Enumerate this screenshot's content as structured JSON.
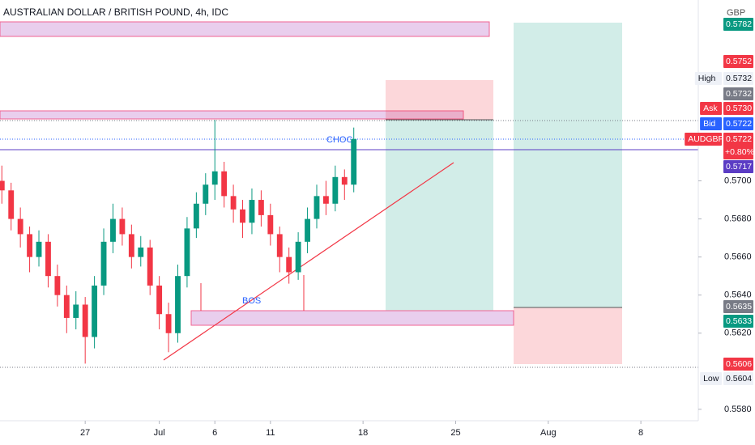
{
  "chart_data": {
    "type": "candlestick",
    "title": "AUSTRALIAN DOLLAR / BRITISH POUND, 4h, IDC",
    "up_color": "#089981",
    "down_color": "#f23645",
    "annotations": [
      "CHOC",
      "BOS"
    ],
    "currency": "GBP",
    "x": [
      -4.5,
      -4,
      -3.5,
      -3,
      -2.5,
      -2,
      -1.5,
      -1,
      -0.5,
      0,
      0.5,
      1,
      1.5,
      2,
      2.5,
      3,
      3.5,
      4,
      4.5,
      5,
      5.5,
      6,
      6.5,
      7,
      7.5,
      8,
      8.5,
      9,
      9.5,
      10,
      10.5,
      11,
      11.5,
      12,
      12.5,
      13,
      13.5,
      14,
      14.5
    ],
    "candles": [
      [
        0.57,
        0.5708,
        0.5688,
        0.5695
      ],
      [
        0.5695,
        0.5699,
        0.5674,
        0.568
      ],
      [
        0.568,
        0.5686,
        0.5665,
        0.5672
      ],
      [
        0.5672,
        0.5676,
        0.5652,
        0.566
      ],
      [
        0.566,
        0.5674,
        0.5655,
        0.5668
      ],
      [
        0.5668,
        0.5672,
        0.5644,
        0.565
      ],
      [
        0.565,
        0.5656,
        0.5634,
        0.564
      ],
      [
        0.564,
        0.5645,
        0.562,
        0.5628
      ],
      [
        0.5628,
        0.5642,
        0.5622,
        0.5635
      ],
      [
        0.5635,
        0.5639,
        0.5604,
        0.5618
      ],
      [
        0.5618,
        0.565,
        0.5612,
        0.5645
      ],
      [
        0.5645,
        0.5675,
        0.564,
        0.5668
      ],
      [
        0.5668,
        0.5688,
        0.5662,
        0.568
      ],
      [
        0.568,
        0.5686,
        0.5666,
        0.5672
      ],
      [
        0.5672,
        0.5677,
        0.5654,
        0.566
      ],
      [
        0.566,
        0.5671,
        0.5655,
        0.5665
      ],
      [
        0.5665,
        0.5669,
        0.564,
        0.5645
      ],
      [
        0.5645,
        0.565,
        0.5622,
        0.563
      ],
      [
        0.563,
        0.5636,
        0.561,
        0.562
      ],
      [
        0.562,
        0.5656,
        0.5615,
        0.565
      ],
      [
        0.565,
        0.5681,
        0.5644,
        0.5675
      ],
      [
        0.5675,
        0.5694,
        0.567,
        0.5688
      ],
      [
        0.5688,
        0.5704,
        0.5682,
        0.5698
      ],
      [
        0.5698,
        0.5732,
        0.569,
        0.5705
      ],
      [
        0.5705,
        0.571,
        0.5686,
        0.5692
      ],
      [
        0.5692,
        0.5698,
        0.5678,
        0.5685
      ],
      [
        0.5685,
        0.569,
        0.567,
        0.5678
      ],
      [
        0.5678,
        0.5696,
        0.5672,
        0.569
      ],
      [
        0.569,
        0.5695,
        0.5676,
        0.5682
      ],
      [
        0.5682,
        0.5688,
        0.5666,
        0.5672
      ],
      [
        0.5672,
        0.5676,
        0.5652,
        0.566
      ],
      [
        0.566,
        0.5665,
        0.5646,
        0.5652
      ],
      [
        0.5652,
        0.5673,
        0.5648,
        0.5668
      ],
      [
        0.5668,
        0.5686,
        0.5662,
        0.568
      ],
      [
        0.568,
        0.5698,
        0.5675,
        0.5692
      ],
      [
        0.5692,
        0.57,
        0.5682,
        0.5688
      ],
      [
        0.5688,
        0.5708,
        0.5684,
        0.5702
      ],
      [
        0.5702,
        0.5706,
        0.569,
        0.5698
      ],
      [
        0.5698,
        0.5728,
        0.5694,
        0.5722
      ]
    ],
    "xlim": [
      -4.6,
      33.1
    ],
    "xticks": [
      {
        "value": 0,
        "label": "27"
      },
      {
        "value": 4,
        "label": "Jul"
      },
      {
        "value": 7,
        "label": "6"
      },
      {
        "value": 10,
        "label": "11"
      },
      {
        "value": 15,
        "label": "18"
      },
      {
        "value": 20,
        "label": "25"
      },
      {
        "value": 25,
        "label": "Aug"
      },
      {
        "value": 30,
        "label": "8"
      }
    ],
    "ylim": [
      0.5574,
      0.5795
    ],
    "yticks": [
      {
        "value": 0.57,
        "label": "0.5700"
      },
      {
        "value": 0.568,
        "label": "0.5680"
      },
      {
        "value": 0.566,
        "label": "0.5660"
      },
      {
        "value": 0.564,
        "label": "0.5640"
      },
      {
        "value": 0.562,
        "label": "0.5620"
      },
      {
        "value": 0.558,
        "label": "0.5580"
      }
    ],
    "price_tags": [
      {
        "text": "0.5782",
        "color": "#089981"
      },
      {
        "text": "0.5752",
        "color": "#f23645"
      },
      {
        "name": "High",
        "text": "0.5732",
        "color": "#eef1f7"
      },
      {
        "text": "0.5732",
        "color": "#787b86"
      },
      {
        "name": "Ask",
        "text": "0.5730",
        "color": "#f23645"
      },
      {
        "name": "Bid",
        "text": "0.5722",
        "color": "#2962ff"
      },
      {
        "name": "AUDGBP",
        "text": "0.5722",
        "change": "+0.80%",
        "color": "#f23645"
      },
      {
        "text": "0.5717",
        "color": "#5b3cc4"
      },
      {
        "text": "0.5635",
        "color": "#787b86"
      },
      {
        "text": "0.5633",
        "color": "#089981"
      },
      {
        "text": "0.5606",
        "color": "#f23645"
      },
      {
        "name": "Low",
        "text": "0.5604",
        "color": "#eef1f7"
      }
    ]
  }
}
